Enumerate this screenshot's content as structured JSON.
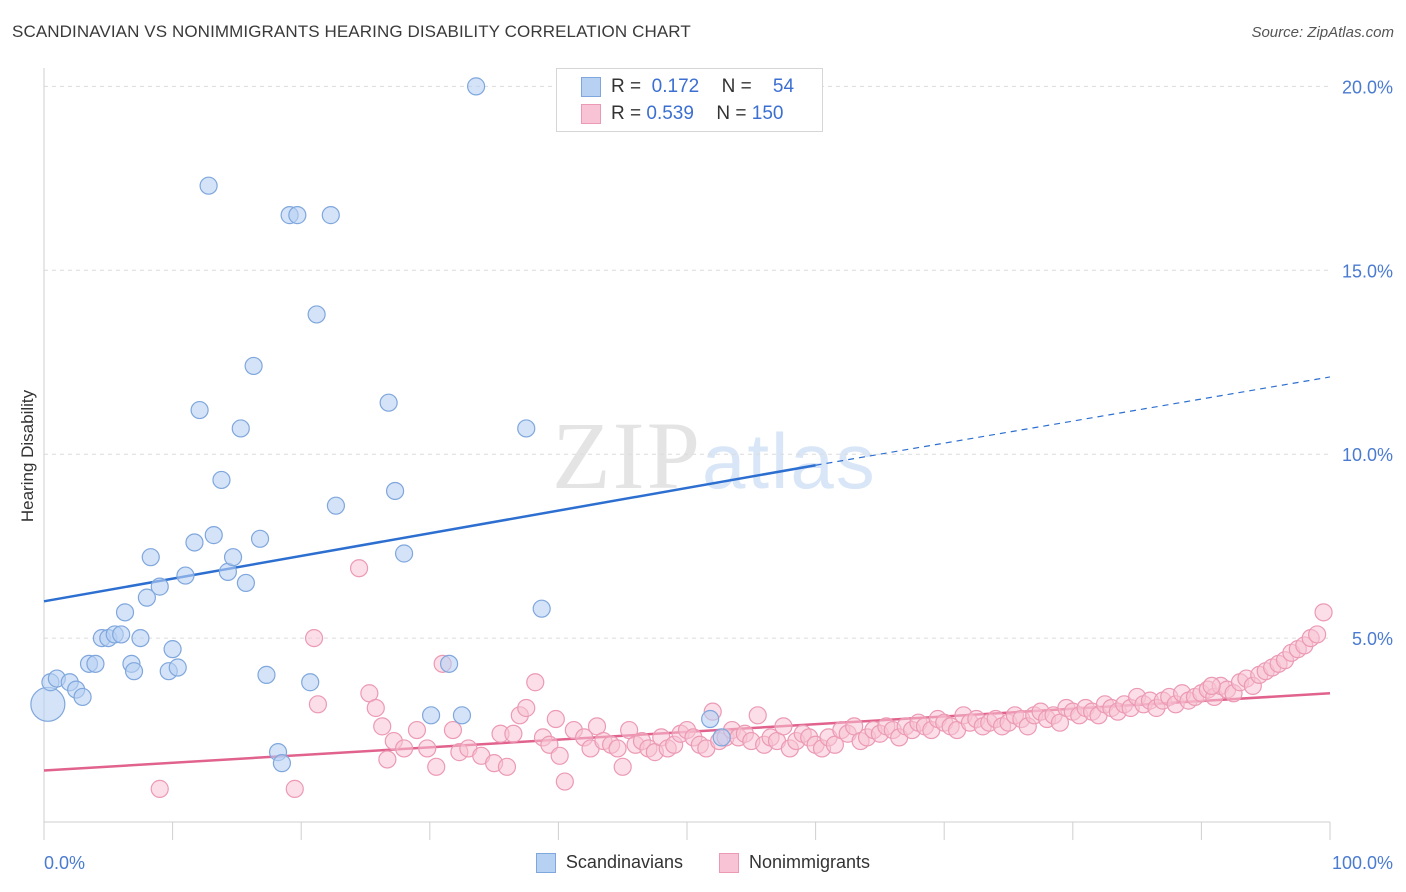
{
  "header": {
    "title": "SCANDINAVIAN VS NONIMMIGRANTS HEARING DISABILITY CORRELATION CHART",
    "source": "Source: ZipAtlas.com"
  },
  "watermark": {
    "main": "ZIP",
    "sub": "atlas"
  },
  "legend": {
    "rows": [
      {
        "r_label": "R =",
        "r_value": "0.172",
        "n_label": "N =",
        "n_value": "54"
      },
      {
        "r_label": "R =",
        "r_value": "0.539",
        "n_label": "N =",
        "n_value": "150"
      }
    ]
  },
  "chart_data": {
    "type": "scatter",
    "title": "SCANDINAVIAN VS NONIMMIGRANTS HEARING DISABILITY CORRELATION CHART",
    "xlabel": "",
    "ylabel": "Hearing Disability",
    "xlim": [
      0,
      100
    ],
    "ylim": [
      0,
      20.5
    ],
    "x_tick_labels": [
      "0.0%",
      "100.0%"
    ],
    "y_ticks": [
      5,
      10,
      15,
      20
    ],
    "y_tick_labels": [
      "5.0%",
      "10.0%",
      "15.0%",
      "20.0%"
    ],
    "grid": true,
    "legend_position": "top-center",
    "colors": {
      "scandinavians_fill": "#b7d1f3",
      "scandinavians_stroke": "#7fa7dd",
      "scandinavians_line": "#2d6fd0",
      "nonimmigrants_fill": "#f8c3d4",
      "nonimmigrants_stroke": "#ec9ab4",
      "nonimmigrants_line": "#e0628d"
    },
    "series": [
      {
        "name": "Scandinavians",
        "trend": {
          "x0": 0,
          "y0": 6.0,
          "x1": 60,
          "y1": 9.7,
          "dash_to_x": 100,
          "dash_to_y": 12.1
        },
        "points": [
          [
            0.3,
            3.2
          ],
          [
            0.5,
            3.8
          ],
          [
            1,
            3.9
          ],
          [
            2,
            3.8
          ],
          [
            2.5,
            3.6
          ],
          [
            3,
            3.4
          ],
          [
            3.5,
            4.3
          ],
          [
            4,
            4.3
          ],
          [
            4.5,
            5.0
          ],
          [
            5,
            5.0
          ],
          [
            5.5,
            5.1
          ],
          [
            6,
            5.1
          ],
          [
            6.3,
            5.7
          ],
          [
            6.8,
            4.3
          ],
          [
            7,
            4.1
          ],
          [
            7.5,
            5.0
          ],
          [
            8,
            6.1
          ],
          [
            8.3,
            7.2
          ],
          [
            9,
            6.4
          ],
          [
            9.7,
            4.1
          ],
          [
            10,
            4.7
          ],
          [
            10.4,
            4.2
          ],
          [
            11,
            6.7
          ],
          [
            11.7,
            7.6
          ],
          [
            12.1,
            11.2
          ],
          [
            12.8,
            17.3
          ],
          [
            13.2,
            7.8
          ],
          [
            13.8,
            9.3
          ],
          [
            14.3,
            6.8
          ],
          [
            14.7,
            7.2
          ],
          [
            15.3,
            10.7
          ],
          [
            15.7,
            6.5
          ],
          [
            16.3,
            12.4
          ],
          [
            16.8,
            7.7
          ],
          [
            17.3,
            4.0
          ],
          [
            18.2,
            1.9
          ],
          [
            19.1,
            16.5
          ],
          [
            19.7,
            16.5
          ],
          [
            20.7,
            3.8
          ],
          [
            21.2,
            13.8
          ],
          [
            22.3,
            16.5
          ],
          [
            22.7,
            8.6
          ],
          [
            26.8,
            11.4
          ],
          [
            27.3,
            9.0
          ],
          [
            28,
            7.3
          ],
          [
            30.1,
            2.9
          ],
          [
            31.5,
            4.3
          ],
          [
            32.5,
            2.9
          ],
          [
            33.6,
            20.0
          ],
          [
            37.5,
            10.7
          ],
          [
            38.7,
            5.8
          ],
          [
            51.8,
            2.8
          ],
          [
            52.7,
            2.3
          ],
          [
            18.5,
            1.6
          ]
        ]
      },
      {
        "name": "Nonimmigrants",
        "trend": {
          "x0": 0,
          "y0": 1.4,
          "x1": 100,
          "y1": 3.5
        },
        "points": [
          [
            9,
            0.9
          ],
          [
            19.5,
            0.9
          ],
          [
            21,
            5.0
          ],
          [
            21.3,
            3.2
          ],
          [
            24.5,
            6.9
          ],
          [
            25.3,
            3.5
          ],
          [
            25.8,
            3.1
          ],
          [
            26.3,
            2.6
          ],
          [
            26.7,
            1.7
          ],
          [
            27.2,
            2.2
          ],
          [
            28,
            2.0
          ],
          [
            29,
            2.5
          ],
          [
            29.8,
            2.0
          ],
          [
            30.5,
            1.5
          ],
          [
            31,
            4.3
          ],
          [
            31.8,
            2.5
          ],
          [
            32.3,
            1.9
          ],
          [
            33,
            2.0
          ],
          [
            34,
            1.8
          ],
          [
            35,
            1.6
          ],
          [
            35.5,
            2.4
          ],
          [
            36,
            1.5
          ],
          [
            36.5,
            2.4
          ],
          [
            37,
            2.9
          ],
          [
            37.5,
            3.1
          ],
          [
            38.2,
            3.8
          ],
          [
            38.8,
            2.3
          ],
          [
            39.3,
            2.1
          ],
          [
            39.8,
            2.8
          ],
          [
            40.1,
            1.8
          ],
          [
            40.5,
            1.1
          ],
          [
            41.2,
            2.5
          ],
          [
            42,
            2.3
          ],
          [
            42.5,
            2.0
          ],
          [
            43,
            2.6
          ],
          [
            43.5,
            2.2
          ],
          [
            44.1,
            2.1
          ],
          [
            44.6,
            2.0
          ],
          [
            45,
            1.5
          ],
          [
            45.5,
            2.5
          ],
          [
            46,
            2.1
          ],
          [
            46.5,
            2.2
          ],
          [
            47,
            2.0
          ],
          [
            47.5,
            1.9
          ],
          [
            48,
            2.3
          ],
          [
            48.5,
            2.0
          ],
          [
            49,
            2.1
          ],
          [
            49.5,
            2.4
          ],
          [
            50,
            2.5
          ],
          [
            50.5,
            2.3
          ],
          [
            51,
            2.1
          ],
          [
            51.5,
            2.0
          ],
          [
            52,
            3.0
          ],
          [
            52.5,
            2.2
          ],
          [
            53,
            2.3
          ],
          [
            53.5,
            2.5
          ],
          [
            54,
            2.3
          ],
          [
            54.5,
            2.4
          ],
          [
            55,
            2.2
          ],
          [
            55.5,
            2.9
          ],
          [
            56,
            2.1
          ],
          [
            56.5,
            2.3
          ],
          [
            57,
            2.2
          ],
          [
            57.5,
            2.6
          ],
          [
            58,
            2.0
          ],
          [
            58.5,
            2.2
          ],
          [
            59,
            2.4
          ],
          [
            59.5,
            2.3
          ],
          [
            60,
            2.1
          ],
          [
            60.5,
            2.0
          ],
          [
            61,
            2.3
          ],
          [
            61.5,
            2.1
          ],
          [
            62,
            2.5
          ],
          [
            62.5,
            2.4
          ],
          [
            63,
            2.6
          ],
          [
            63.5,
            2.2
          ],
          [
            64,
            2.3
          ],
          [
            64.5,
            2.5
          ],
          [
            65,
            2.4
          ],
          [
            65.5,
            2.6
          ],
          [
            66,
            2.5
          ],
          [
            66.5,
            2.3
          ],
          [
            67,
            2.6
          ],
          [
            67.5,
            2.5
          ],
          [
            68,
            2.7
          ],
          [
            68.5,
            2.6
          ],
          [
            69,
            2.5
          ],
          [
            69.5,
            2.8
          ],
          [
            70,
            2.7
          ],
          [
            70.5,
            2.6
          ],
          [
            71,
            2.5
          ],
          [
            71.5,
            2.9
          ],
          [
            72,
            2.7
          ],
          [
            72.5,
            2.8
          ],
          [
            73,
            2.6
          ],
          [
            73.5,
            2.7
          ],
          [
            74,
            2.8
          ],
          [
            74.5,
            2.6
          ],
          [
            75,
            2.7
          ],
          [
            75.5,
            2.9
          ],
          [
            76,
            2.8
          ],
          [
            76.5,
            2.6
          ],
          [
            77,
            2.9
          ],
          [
            77.5,
            3.0
          ],
          [
            78,
            2.8
          ],
          [
            78.5,
            2.9
          ],
          [
            79,
            2.7
          ],
          [
            79.5,
            3.1
          ],
          [
            80,
            3.0
          ],
          [
            80.5,
            2.9
          ],
          [
            81,
            3.1
          ],
          [
            81.5,
            3.0
          ],
          [
            82,
            2.9
          ],
          [
            82.5,
            3.2
          ],
          [
            83,
            3.1
          ],
          [
            83.5,
            3.0
          ],
          [
            84,
            3.2
          ],
          [
            84.5,
            3.1
          ],
          [
            85,
            3.4
          ],
          [
            85.5,
            3.2
          ],
          [
            86,
            3.3
          ],
          [
            86.5,
            3.1
          ],
          [
            87,
            3.3
          ],
          [
            87.5,
            3.4
          ],
          [
            88,
            3.2
          ],
          [
            88.5,
            3.5
          ],
          [
            89,
            3.3
          ],
          [
            89.5,
            3.4
          ],
          [
            90,
            3.5
          ],
          [
            90.5,
            3.6
          ],
          [
            91,
            3.4
          ],
          [
            91.5,
            3.7
          ],
          [
            92,
            3.6
          ],
          [
            92.5,
            3.5
          ],
          [
            93,
            3.8
          ],
          [
            93.5,
            3.9
          ],
          [
            94,
            3.7
          ],
          [
            94.5,
            4.0
          ],
          [
            95,
            4.1
          ],
          [
            95.5,
            4.2
          ],
          [
            96,
            4.3
          ],
          [
            96.5,
            4.4
          ],
          [
            97,
            4.6
          ],
          [
            97.5,
            4.7
          ],
          [
            98,
            4.8
          ],
          [
            98.5,
            5.0
          ],
          [
            99,
            5.1
          ],
          [
            99.5,
            5.7
          ],
          [
            90.8,
            3.7
          ]
        ]
      }
    ]
  }
}
